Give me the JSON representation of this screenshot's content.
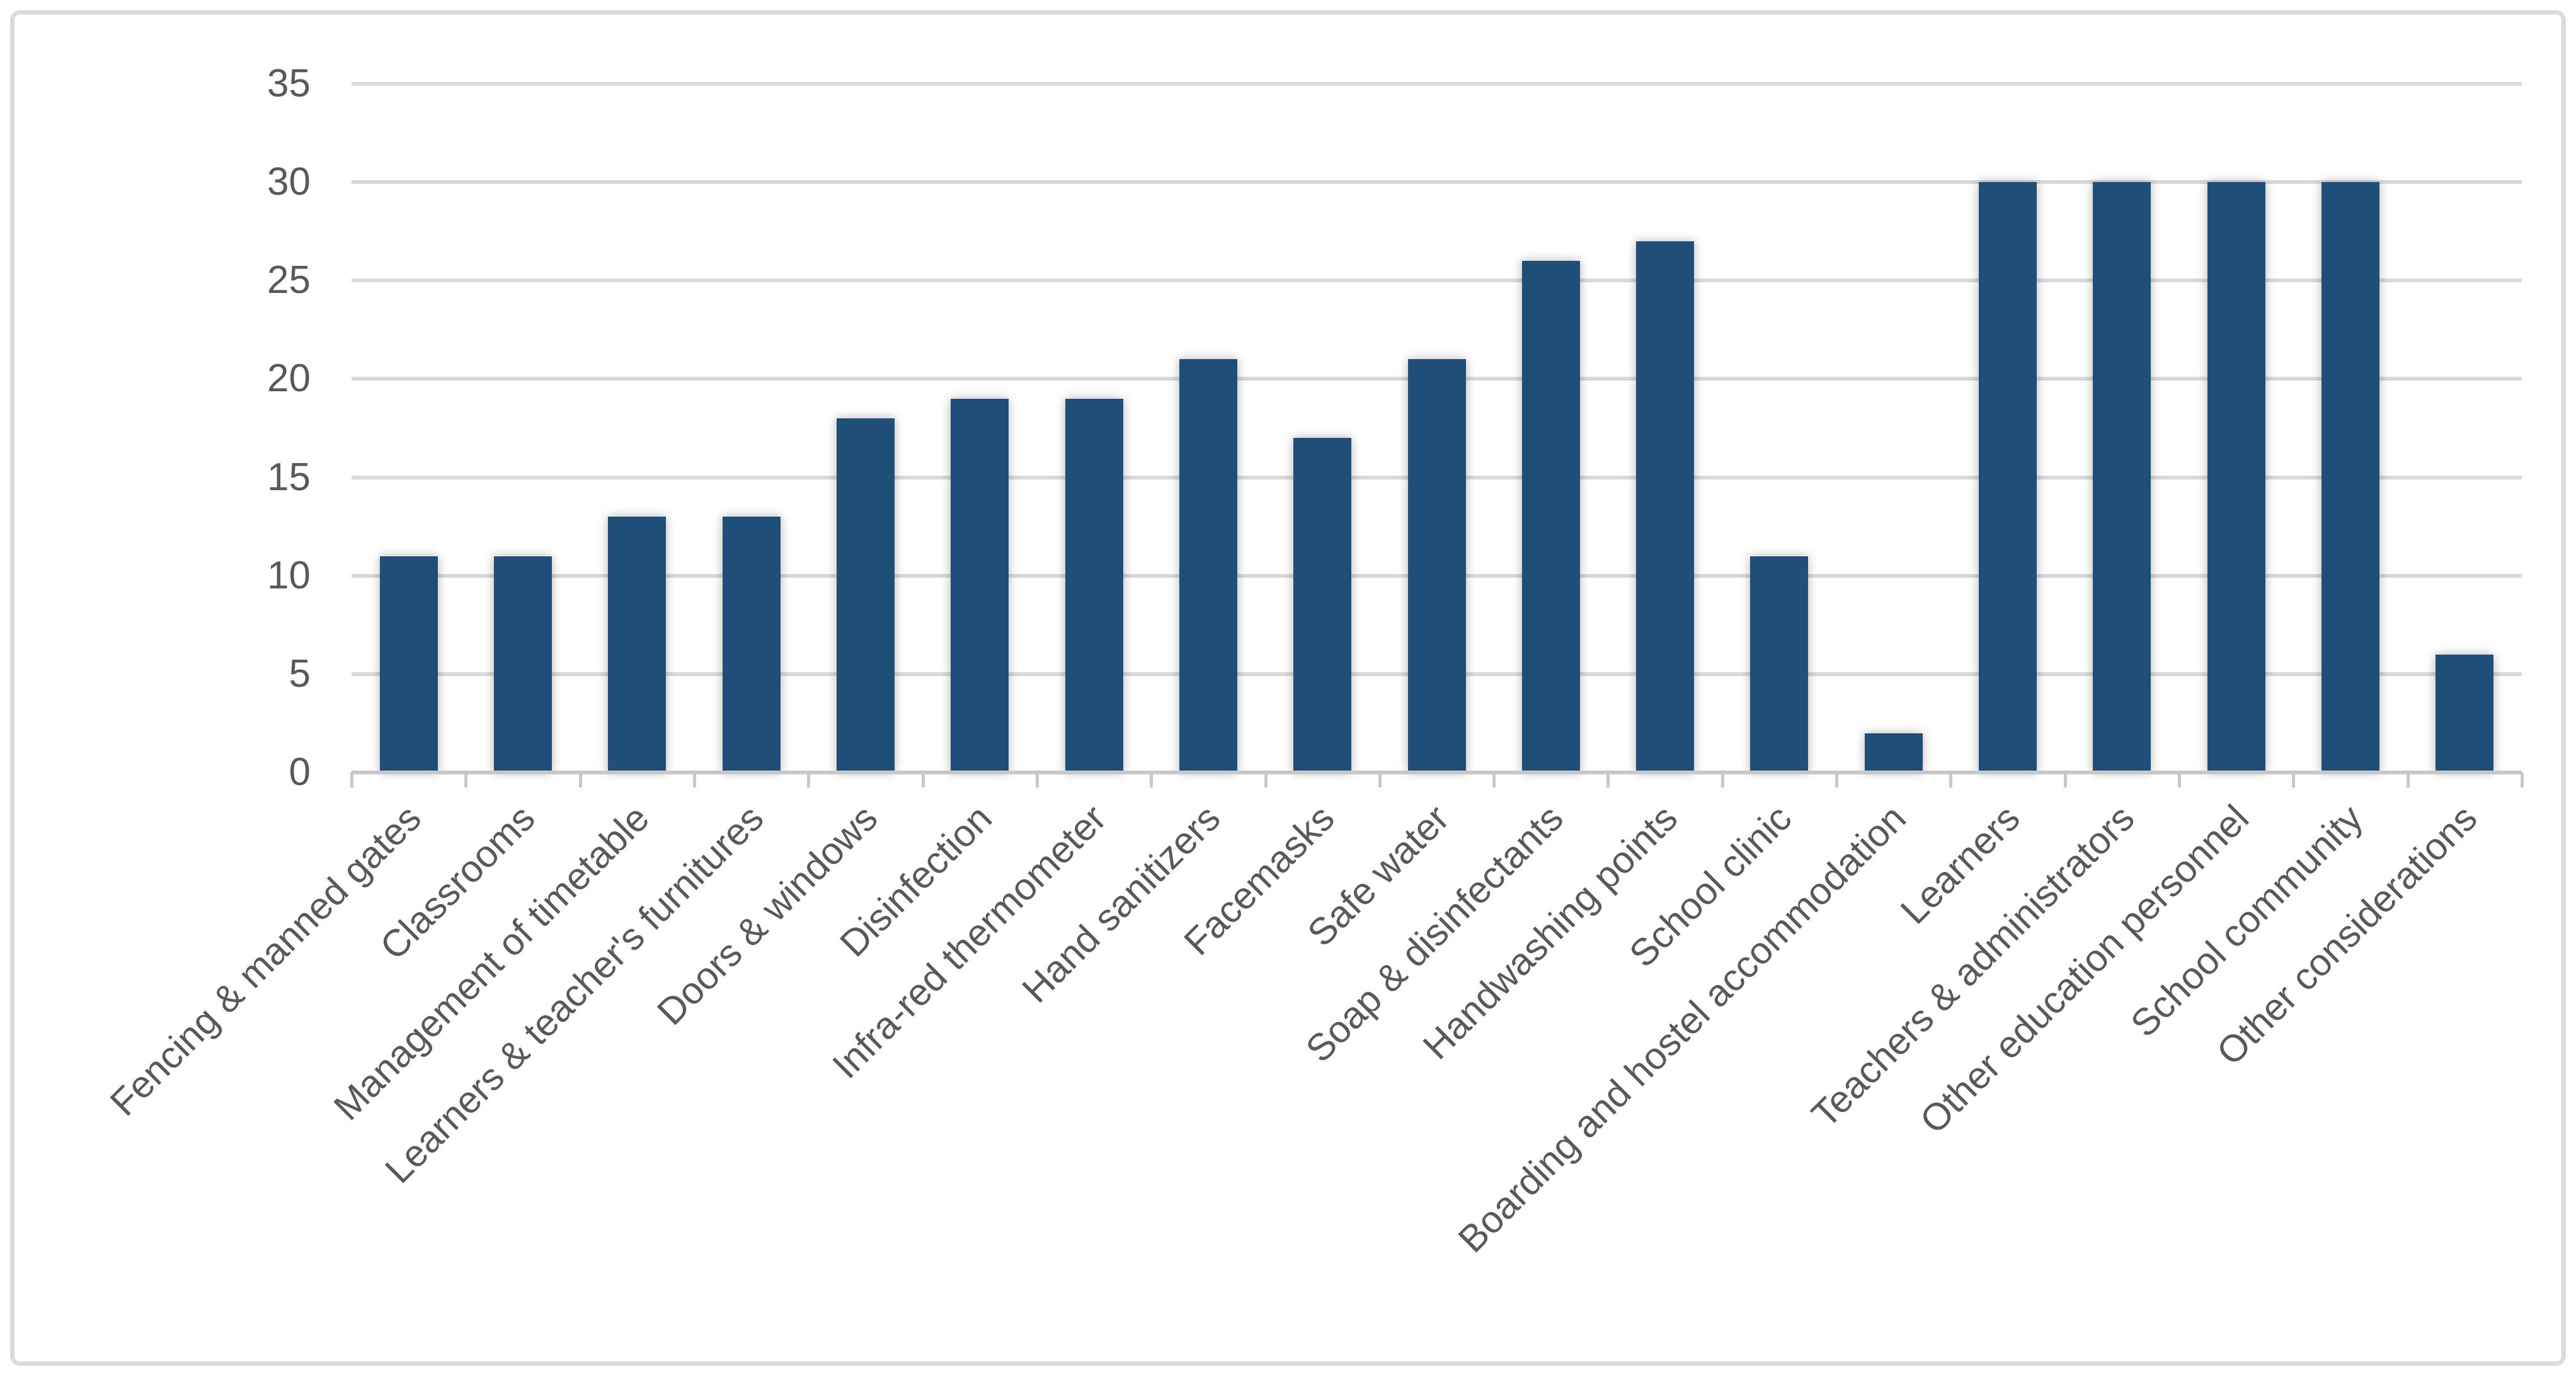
{
  "chart_data": {
    "type": "bar",
    "title": "",
    "xlabel": "",
    "ylabel": "",
    "categories": [
      "Fencing & manned gates",
      "Classrooms",
      "Management of timetable",
      "Learners & teacher's furnitures",
      "Doors & windows",
      "Disinfection",
      "Infra-red thermometer",
      "Hand sanitizers",
      "Facemasks",
      "Safe water",
      "Soap & disinfectants",
      "Handwashing points",
      "School clinic",
      "Boarding and hostel accommodation",
      "Learners",
      "Teachers & administrators",
      "Other education personnel",
      "School community",
      "Other considerations"
    ],
    "values": [
      11,
      11,
      13,
      13,
      18,
      19,
      19,
      21,
      17,
      21,
      26,
      27,
      11,
      2,
      30,
      30,
      30,
      30,
      6
    ],
    "y_ticks": [
      0,
      5,
      10,
      15,
      20,
      25,
      30,
      35
    ],
    "ylim": [
      0,
      35
    ],
    "grid": "horizontal",
    "legend": "none",
    "x_label_rotation_deg": 45,
    "colors": {
      "bar_fill": "#1F4E79",
      "gridline": "#D9D9D9",
      "axis_line": "#C8C8C8",
      "tick_text": "#595959",
      "background": "#FFFFFF",
      "frame_border": "#DBDBDB"
    }
  }
}
